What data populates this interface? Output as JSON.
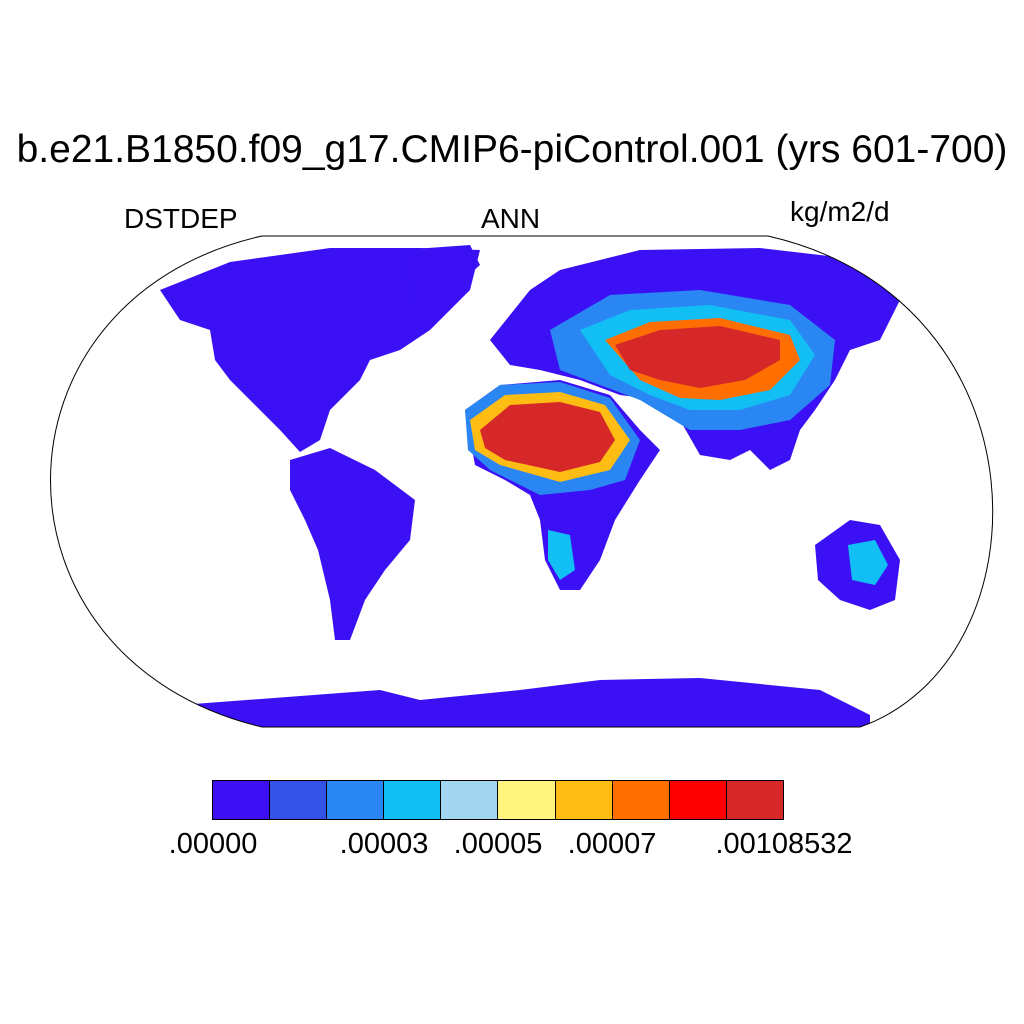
{
  "title": "b.e21.B1850.f09_g17.CMIP6-piControl.001 (yrs 601-700)",
  "left_label": "DSTDEP",
  "center_label": "ANN",
  "units": "kg/m2/d",
  "colors": {
    "land_low": "#3b10f5",
    "sea": "#ffffff"
  },
  "legend": {
    "colors": [
      "#3b10f5",
      "#3452e8",
      "#2a86f2",
      "#12bff5",
      "#a2d6f0",
      "#fff47e",
      "#ffbd14",
      "#ff6e00",
      "#ff0000",
      "#d62828"
    ],
    "tick_labels": [
      ".00000",
      ".00003",
      ".00005",
      ".00007",
      ".00108532"
    ]
  }
}
